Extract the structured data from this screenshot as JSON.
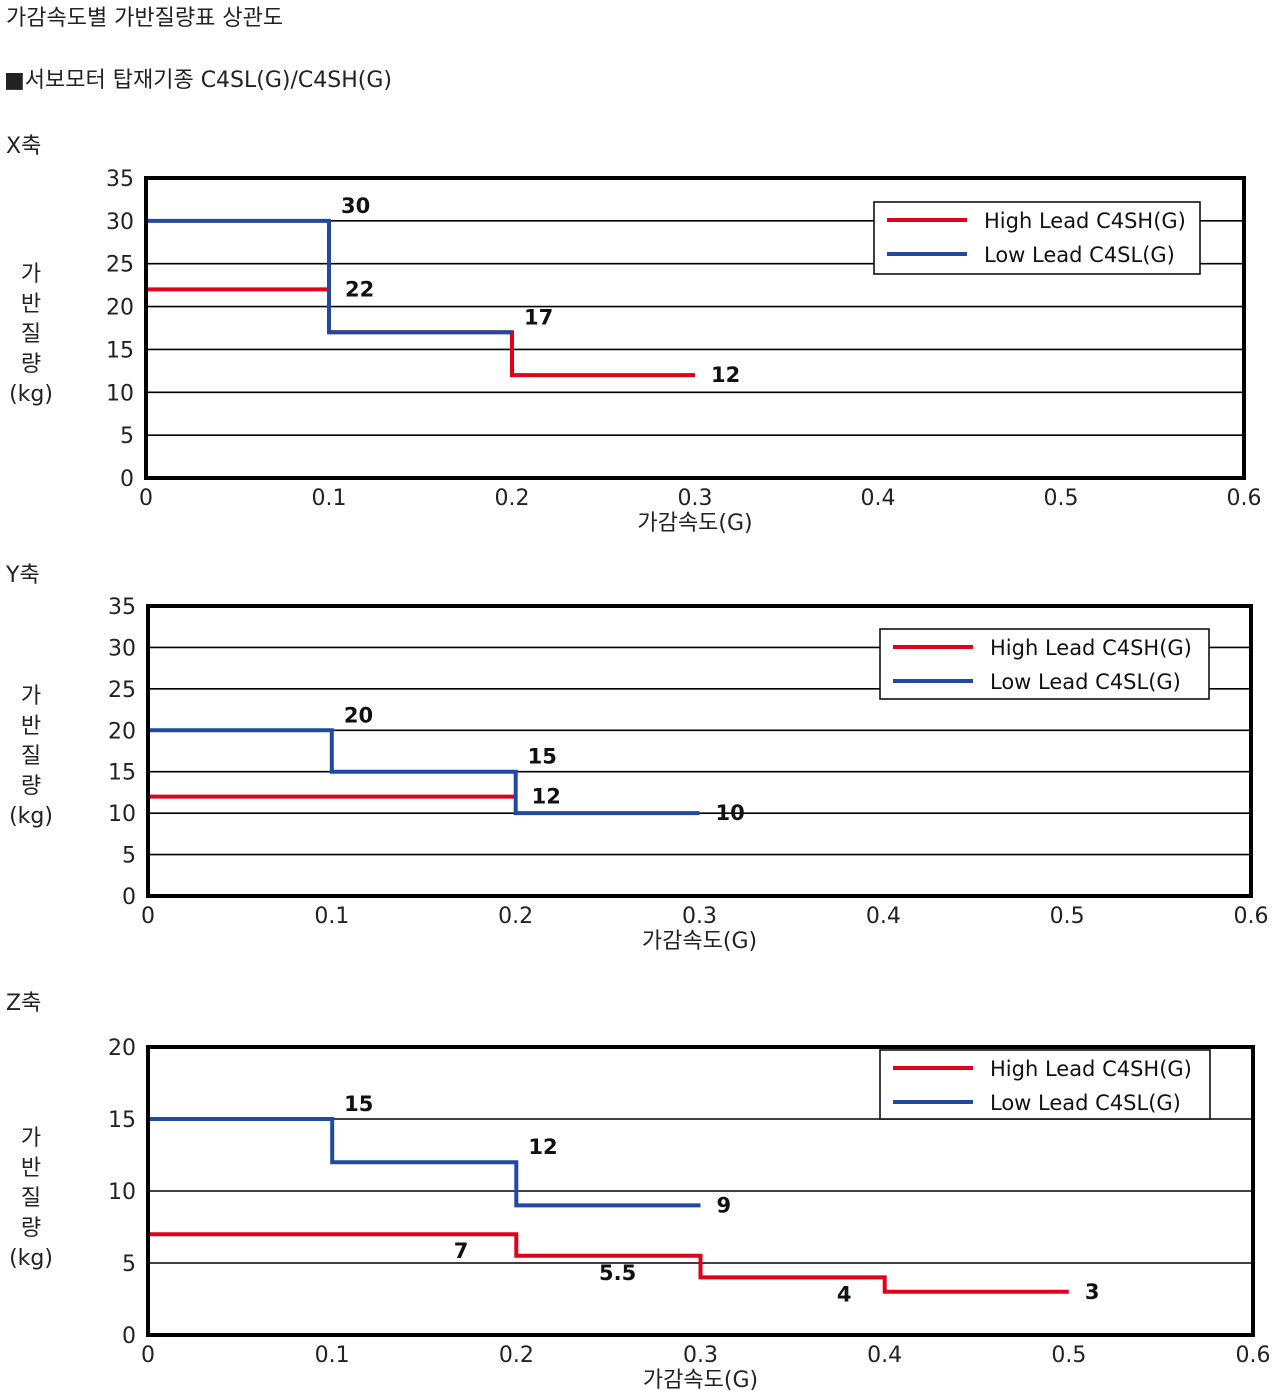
{
  "title": "가감속도별 가반질량표 상관도",
  "subtitle": "■서보모터 탑재기종 C4SL(G)/C4SH(G)",
  "colors": {
    "high": "#e2001a",
    "low": "#1f4aa0",
    "frame": "#000000",
    "grid": "#000000"
  },
  "chart_data": [
    {
      "type": "line",
      "step": true,
      "heading": "X축",
      "xlabel": "가감속도(G)",
      "ylabel": [
        "가",
        "반",
        "질",
        "량",
        "(kg)"
      ],
      "xlim": [
        0,
        0.6
      ],
      "ylim": [
        0,
        35
      ],
      "xticks": [
        "0",
        "0.1",
        "0.2",
        "0.3",
        "0.4",
        "0.5",
        "0.6"
      ],
      "yticks": [
        "0",
        "5",
        "10",
        "15",
        "20",
        "25",
        "30",
        "35"
      ],
      "grid": true,
      "legend": "top-right",
      "series": [
        {
          "name": "High Lead C4SH(G)",
          "color": "#e2001a",
          "points": [
            [
              0,
              22
            ],
            [
              0.1,
              22
            ],
            [
              0.1,
              17
            ],
            [
              0.2,
              17
            ],
            [
              0.2,
              12
            ],
            [
              0.3,
              12
            ]
          ]
        },
        {
          "name": "Low Lead C4SL(G)",
          "color": "#1f4aa0",
          "points": [
            [
              0,
              30
            ],
            [
              0.1,
              30
            ],
            [
              0.1,
              17
            ],
            [
              0.2,
              17
            ]
          ]
        }
      ],
      "data_labels": [
        {
          "text": "30",
          "x": 0.1,
          "y": 30,
          "pos": "above-right"
        },
        {
          "text": "22",
          "x": 0.1,
          "y": 22,
          "pos": "right"
        },
        {
          "text": "17",
          "x": 0.2,
          "y": 17,
          "pos": "above-right"
        },
        {
          "text": "12",
          "x": 0.3,
          "y": 12,
          "pos": "right"
        }
      ]
    },
    {
      "type": "line",
      "step": true,
      "heading": "Y축",
      "xlabel": "가감속도(G)",
      "ylabel": [
        "가",
        "반",
        "질",
        "량",
        "(kg)"
      ],
      "xlim": [
        0,
        0.6
      ],
      "ylim": [
        0,
        35
      ],
      "xticks": [
        "0",
        "0.1",
        "0.2",
        "0.3",
        "0.4",
        "0.5",
        "0.6"
      ],
      "yticks": [
        "0",
        "5",
        "10",
        "15",
        "20",
        "25",
        "30",
        "35"
      ],
      "grid": true,
      "legend": "top-right",
      "series": [
        {
          "name": "High Lead C4SH(G)",
          "color": "#e2001a",
          "points": [
            [
              0,
              12
            ],
            [
              0.2,
              12
            ]
          ]
        },
        {
          "name": "Low Lead C4SL(G)",
          "color": "#1f4aa0",
          "points": [
            [
              0,
              20
            ],
            [
              0.1,
              20
            ],
            [
              0.1,
              15
            ],
            [
              0.2,
              15
            ],
            [
              0.2,
              10
            ],
            [
              0.3,
              10
            ]
          ]
        }
      ],
      "data_labels": [
        {
          "text": "20",
          "x": 0.1,
          "y": 20,
          "pos": "above-right"
        },
        {
          "text": "15",
          "x": 0.2,
          "y": 15,
          "pos": "above-right"
        },
        {
          "text": "12",
          "x": 0.2,
          "y": 12,
          "pos": "right"
        },
        {
          "text": "10",
          "x": 0.3,
          "y": 10,
          "pos": "right"
        }
      ]
    },
    {
      "type": "line",
      "step": true,
      "heading": "Z축",
      "xlabel": "가감속도(G)",
      "ylabel": [
        "가",
        "반",
        "질",
        "량",
        "(kg)"
      ],
      "xlim": [
        0,
        0.6
      ],
      "ylim": [
        0,
        20
      ],
      "xticks": [
        "0",
        "0.1",
        "0.2",
        "0.3",
        "0.4",
        "0.5",
        "0.6"
      ],
      "yticks": [
        "0",
        "5",
        "10",
        "15",
        "20"
      ],
      "grid": true,
      "legend": "top-right",
      "series": [
        {
          "name": "High Lead C4SH(G)",
          "color": "#e2001a",
          "points": [
            [
              0,
              7
            ],
            [
              0.2,
              7
            ],
            [
              0.2,
              5.5
            ],
            [
              0.3,
              5.5
            ],
            [
              0.3,
              4
            ],
            [
              0.4,
              4
            ],
            [
              0.4,
              3
            ],
            [
              0.5,
              3
            ]
          ]
        },
        {
          "name": "Low Lead C4SL(G)",
          "color": "#1f4aa0",
          "points": [
            [
              0,
              15
            ],
            [
              0.1,
              15
            ],
            [
              0.1,
              12
            ],
            [
              0.2,
              12
            ],
            [
              0.2,
              9
            ],
            [
              0.3,
              9
            ]
          ]
        }
      ],
      "data_labels": [
        {
          "text": "15",
          "x": 0.1,
          "y": 15,
          "pos": "above-right"
        },
        {
          "text": "12",
          "x": 0.2,
          "y": 12,
          "pos": "above-right"
        },
        {
          "text": "9",
          "x": 0.3,
          "y": 9,
          "pos": "right"
        },
        {
          "text": "7",
          "x": 0.17,
          "y": 7,
          "pos": "below"
        },
        {
          "text": "5.5",
          "x": 0.255,
          "y": 5.5,
          "pos": "below"
        },
        {
          "text": "4",
          "x": 0.378,
          "y": 4,
          "pos": "below"
        },
        {
          "text": "3",
          "x": 0.5,
          "y": 3,
          "pos": "right"
        }
      ]
    }
  ]
}
